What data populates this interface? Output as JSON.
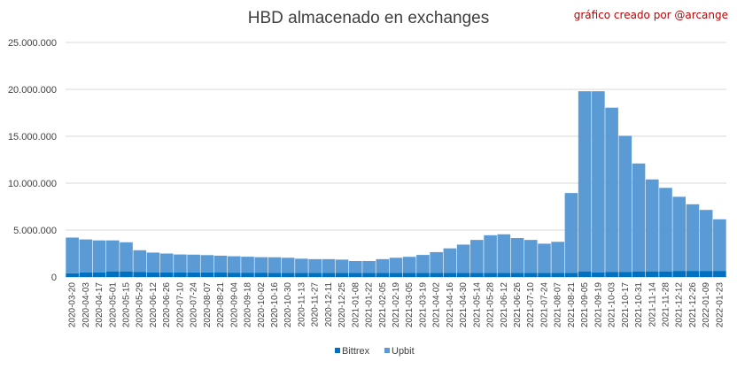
{
  "chart_data": {
    "type": "bar",
    "stacked": true,
    "title": "HBD almacenado en exchanges",
    "annotation": "gráfico creado por @arcange",
    "ylim": [
      0,
      25000000
    ],
    "yticks": [
      "0",
      "5.000.000",
      "10.000.000",
      "15.000.000",
      "20.000.000",
      "25.000.000"
    ],
    "ytick_values": [
      0,
      5000000,
      10000000,
      15000000,
      20000000,
      25000000
    ],
    "grid": true,
    "legend_position": "bottom",
    "colors": {
      "Bittrex": "#0070c0",
      "Upbit": "#5b9bd5"
    },
    "categories": [
      "2020-03-20",
      "2020-04-03",
      "2020-04-17",
      "2020-05-01",
      "2020-05-15",
      "2020-05-29",
      "2020-06-12",
      "2020-06-26",
      "2020-07-10",
      "2020-07-24",
      "2020-08-07",
      "2020-08-21",
      "2020-09-04",
      "2020-09-18",
      "2020-10-02",
      "2020-10-16",
      "2020-10-30",
      "2020-11-13",
      "2020-11-27",
      "2020-12-11",
      "2020-12-25",
      "2021-01-08",
      "2021-01-22",
      "2021-02-05",
      "2021-02-19",
      "2021-03-05",
      "2021-03-19",
      "2021-04-02",
      "2021-04-16",
      "2021-04-30",
      "2021-05-14",
      "2021-05-28",
      "2021-06-12",
      "2021-06-26",
      "2021-07-10",
      "2021-07-24",
      "2021-08-07",
      "2021-08-21",
      "2021-09-05",
      "2021-09-19",
      "2021-10-03",
      "2021-10-17",
      "2021-10-31",
      "2021-11-14",
      "2021-11-28",
      "2021-12-12",
      "2021-12-26",
      "2022-01-09",
      "2022-01-23"
    ],
    "series": [
      {
        "name": "Bittrex",
        "values": [
          400000,
          500000,
          500000,
          600000,
          600000,
          550000,
          500000,
          500000,
          500000,
          480000,
          480000,
          470000,
          460000,
          460000,
          460000,
          450000,
          450000,
          450000,
          450000,
          450000,
          450000,
          450000,
          450000,
          450000,
          450000,
          450000,
          450000,
          450000,
          450000,
          450000,
          450000,
          450000,
          450000,
          450000,
          450000,
          450000,
          450000,
          450000,
          600000,
          500000,
          550000,
          550000,
          600000,
          600000,
          600000,
          650000,
          650000,
          650000,
          650000
        ]
      },
      {
        "name": "Upbit",
        "values": [
          3800000,
          3500000,
          3400000,
          3300000,
          3100000,
          2300000,
          2100000,
          2000000,
          1900000,
          1900000,
          1850000,
          1800000,
          1750000,
          1700000,
          1650000,
          1650000,
          1600000,
          1500000,
          1450000,
          1450000,
          1400000,
          1250000,
          1250000,
          1450000,
          1600000,
          1700000,
          1900000,
          2200000,
          2600000,
          3000000,
          3500000,
          4000000,
          4100000,
          3700000,
          3500000,
          3100000,
          3300000,
          8500000,
          19200000,
          19300000,
          17500000,
          14500000,
          11500000,
          9800000,
          8900000,
          7900000,
          7100000,
          6500000,
          5500000
        ]
      }
    ]
  }
}
